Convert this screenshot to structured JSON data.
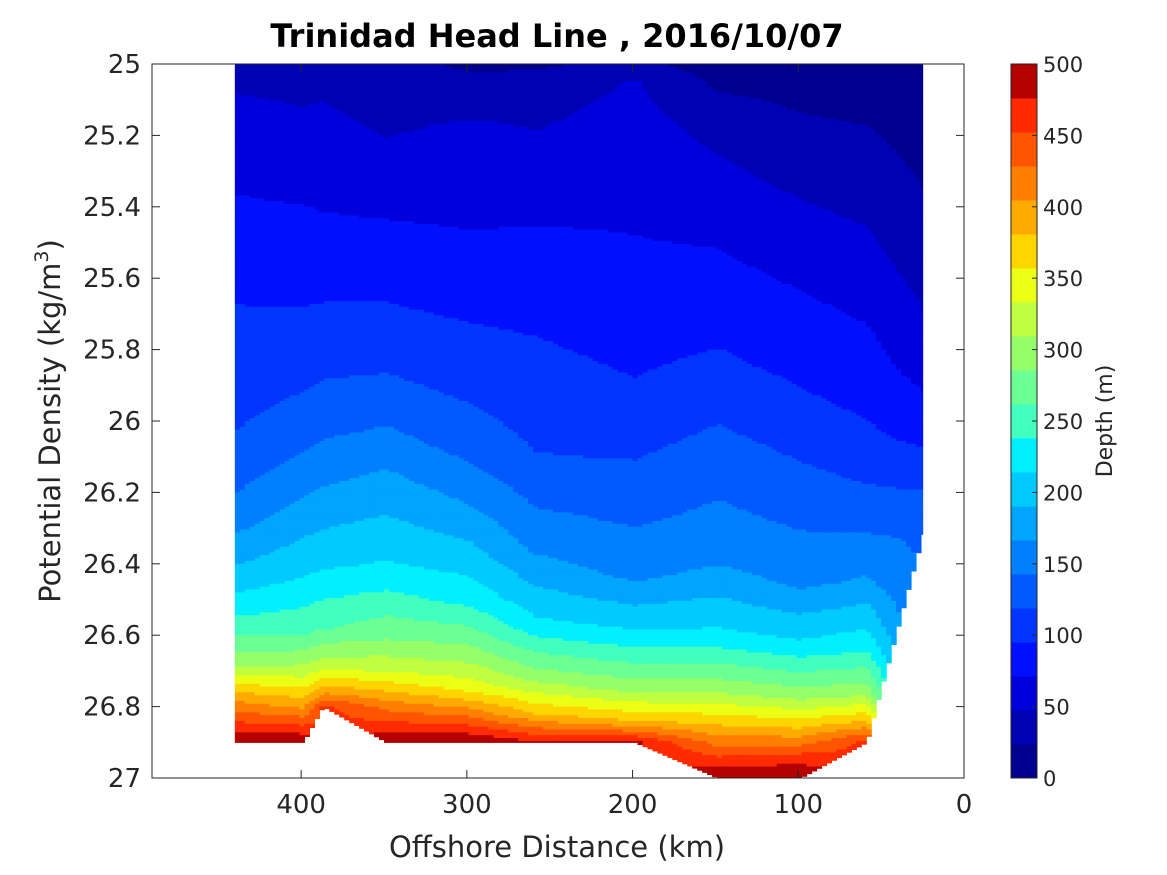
{
  "chart_data": {
    "type": "heatmap",
    "subtype": "filled-contour",
    "title": "Trinidad Head Line , 2016/10/07",
    "xlabel": "Offshore Distance (km)",
    "ylabel_main": "Potential Density (kg/m",
    "ylabel_sup": "3",
    "ylabel_end": ")",
    "xlim": [
      490,
      0
    ],
    "ylim": [
      27,
      25
    ],
    "x_reversed": true,
    "y_reversed": true,
    "xticks": [
      400,
      300,
      200,
      100,
      0
    ],
    "yticks": [
      25,
      25.2,
      25.4,
      25.6,
      25.8,
      26,
      26.2,
      26.4,
      26.6,
      26.8,
      27
    ],
    "colorbar": {
      "label": "Depth (m)",
      "min": 0,
      "max": 500,
      "ticks": [
        0,
        50,
        100,
        150,
        200,
        250,
        300,
        350,
        400,
        450,
        500
      ],
      "levels": [
        0,
        25,
        50,
        75,
        100,
        125,
        150,
        175,
        200,
        225,
        250,
        275,
        300,
        325,
        350,
        375,
        400,
        425,
        450,
        475,
        500
      ],
      "colors": [
        "#00008f",
        "#0000b5",
        "#0000dc",
        "#0010ff",
        "#0035ff",
        "#005aff",
        "#0080ff",
        "#00a5ff",
        "#00caff",
        "#00f0ff",
        "#40ffbf",
        "#6bff94",
        "#95ff6a",
        "#bfff40",
        "#eaff15",
        "#ffd500",
        "#ffaa00",
        "#ff8000",
        "#ff5500",
        "#ff2a00",
        "#b50000"
      ]
    },
    "profiles": [
      {
        "x": 440,
        "sigma_max": 26.9,
        "depth": [
          [
            25.0,
            30
          ],
          [
            25.05,
            45
          ],
          [
            25.23,
            60
          ],
          [
            25.47,
            80
          ],
          [
            25.74,
            100
          ],
          [
            26.04,
            120
          ],
          [
            26.25,
            150
          ],
          [
            26.44,
            200
          ],
          [
            26.58,
            250
          ],
          [
            26.68,
            300
          ],
          [
            26.78,
            400
          ],
          [
            26.9,
            500
          ]
        ]
      },
      {
        "x": 400,
        "sigma_max": 26.9,
        "depth": [
          [
            25.0,
            38
          ],
          [
            25.15,
            50
          ],
          [
            25.38,
            70
          ],
          [
            25.48,
            80
          ],
          [
            25.74,
            100
          ],
          [
            26.02,
            130
          ],
          [
            26.18,
            160
          ],
          [
            26.42,
            210
          ],
          [
            26.6,
            260
          ],
          [
            26.7,
            320
          ],
          [
            26.8,
            400
          ],
          [
            26.9,
            500
          ]
        ]
      },
      {
        "x": 388,
        "sigma_max": 26.8,
        "depth": [
          [
            25.0,
            40
          ],
          [
            25.28,
            60
          ],
          [
            25.4,
            70
          ],
          [
            25.5,
            80
          ],
          [
            25.72,
            100
          ],
          [
            25.98,
            130
          ],
          [
            26.15,
            160
          ],
          [
            26.4,
            210
          ],
          [
            26.58,
            260
          ],
          [
            26.68,
            320
          ],
          [
            26.76,
            400
          ],
          [
            26.8,
            460
          ]
        ]
      },
      {
        "x": 350,
        "sigma_max": 26.9,
        "depth": [
          [
            25.0,
            30
          ],
          [
            25.35,
            60
          ],
          [
            25.5,
            80
          ],
          [
            25.72,
            100
          ],
          [
            25.95,
            130
          ],
          [
            26.1,
            160
          ],
          [
            26.42,
            220
          ],
          [
            26.6,
            280
          ],
          [
            26.7,
            330
          ],
          [
            26.8,
            420
          ],
          [
            26.9,
            500
          ]
        ]
      },
      {
        "x": 300,
        "sigma_max": 26.9,
        "depth": [
          [
            25.0,
            20
          ],
          [
            25.17,
            50
          ],
          [
            25.35,
            60
          ],
          [
            25.55,
            80
          ],
          [
            25.78,
            100
          ],
          [
            26.05,
            130
          ],
          [
            26.25,
            170
          ],
          [
            26.5,
            230
          ],
          [
            26.66,
            300
          ],
          [
            26.75,
            350
          ],
          [
            26.82,
            420
          ],
          [
            26.9,
            500
          ]
        ]
      },
      {
        "x": 260,
        "sigma_max": 26.9,
        "depth": [
          [
            25.0,
            20
          ],
          [
            25.1,
            40
          ],
          [
            25.55,
            80
          ],
          [
            25.83,
            100
          ],
          [
            26.1,
            120
          ],
          [
            26.35,
            160
          ],
          [
            26.57,
            220
          ],
          [
            26.72,
            300
          ],
          [
            26.82,
            380
          ],
          [
            26.9,
            480
          ]
        ]
      },
      {
        "x": 200,
        "sigma_max": 26.9,
        "depth": [
          [
            25.0,
            30
          ],
          [
            25.05,
            50
          ],
          [
            25.65,
            80
          ],
          [
            25.95,
            100
          ],
          [
            26.2,
            130
          ],
          [
            26.43,
            160
          ],
          [
            26.6,
            220
          ],
          [
            26.75,
            300
          ],
          [
            26.84,
            380
          ],
          [
            26.9,
            480
          ]
        ]
      },
      {
        "x": 150,
        "sigma_max": 27.0,
        "depth": [
          [
            25.0,
            10
          ],
          [
            25.17,
            40
          ],
          [
            25.5,
            70
          ],
          [
            25.85,
            100
          ],
          [
            26.1,
            130
          ],
          [
            26.38,
            160
          ],
          [
            26.6,
            220
          ],
          [
            26.75,
            300
          ],
          [
            26.85,
            380
          ],
          [
            26.95,
            460
          ],
          [
            27.0,
            500
          ]
        ]
      },
      {
        "x": 100,
        "sigma_max": 27.0,
        "depth": [
          [
            25.0,
            10
          ],
          [
            25.3,
            40
          ],
          [
            25.62,
            70
          ],
          [
            25.96,
            100
          ],
          [
            26.2,
            130
          ],
          [
            26.45,
            160
          ],
          [
            26.63,
            220
          ],
          [
            26.77,
            300
          ],
          [
            26.86,
            380
          ],
          [
            26.95,
            470
          ],
          [
            27.0,
            500
          ]
        ]
      },
      {
        "x": 60,
        "sigma_max": 26.9,
        "depth": [
          [
            25.0,
            10
          ],
          [
            25.25,
            30
          ],
          [
            25.6,
            60
          ],
          [
            26.05,
            100
          ],
          [
            26.25,
            130
          ],
          [
            26.45,
            170
          ],
          [
            26.63,
            230
          ],
          [
            26.76,
            300
          ],
          [
            26.84,
            380
          ],
          [
            26.9,
            460
          ]
        ]
      },
      {
        "x": 25,
        "sigma_max": 26.3,
        "depth": [
          [
            25.0,
            5
          ],
          [
            25.48,
            30
          ],
          [
            25.84,
            60
          ],
          [
            26.05,
            90
          ],
          [
            26.3,
            140
          ]
        ]
      }
    ]
  }
}
